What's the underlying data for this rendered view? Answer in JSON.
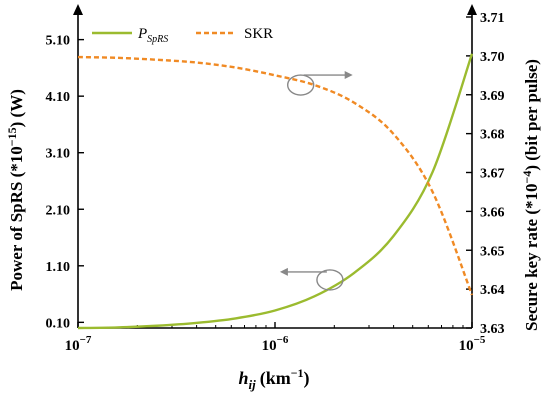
{
  "chart_data": {
    "type": "line",
    "x_axis": {
      "label_main": "h",
      "label_sub": "ij",
      "label_unit": "(km",
      "label_unit_sup": "−1",
      "label_unit_close": ")",
      "scale": "log",
      "range": [
        1e-07,
        1e-05
      ],
      "ticks": [
        {
          "value": 1e-07,
          "base": "10",
          "exp": "−7"
        },
        {
          "value": 1e-06,
          "base": "10",
          "exp": "−6"
        },
        {
          "value": 1e-05,
          "base": "10",
          "exp": "−5"
        }
      ]
    },
    "y_left": {
      "label_pre": "Power of SpRS (*10",
      "label_sup": "−15",
      "label_post": ") (W)",
      "range": [
        0.0,
        5.5
      ],
      "ticks": [
        "0.10",
        "1.10",
        "2.10",
        "3.10",
        "4.10",
        "5.10"
      ]
    },
    "y_right": {
      "label_pre": "Secure key rate (*10",
      "label_sup": "−4",
      "label_post": ") (bit per pulse)",
      "range": [
        3.63,
        3.71
      ],
      "ticks": [
        "3.63",
        "3.64",
        "3.65",
        "3.66",
        "3.67",
        "3.68",
        "3.69",
        "3.70",
        "3.71"
      ]
    },
    "series": [
      {
        "name_main": "P",
        "name_sub": "SpRS",
        "axis": "left",
        "style": "solid",
        "color": "#9bbb2f",
        "x": [
          1e-07,
          1.585e-07,
          2.512e-07,
          3.981e-07,
          6.31e-07,
          1e-06,
          1.585e-06,
          2.512e-06,
          3.981e-06,
          6.31e-06,
          1e-05
        ],
        "y": [
          0.0,
          0.01,
          0.04,
          0.09,
          0.17,
          0.31,
          0.56,
          0.97,
          1.62,
          2.76,
          4.85
        ]
      },
      {
        "name": "SKR",
        "axis": "right",
        "style": "dashed",
        "color": "#f08a24",
        "x": [
          1e-07,
          1.585e-07,
          2.512e-07,
          3.981e-07,
          6.31e-07,
          1e-06,
          1.585e-06,
          2.512e-06,
          3.981e-06,
          6.31e-06,
          1e-05
        ],
        "y": [
          3.6997,
          3.6995,
          3.699,
          3.6983,
          3.697,
          3.695,
          3.6925,
          3.688,
          3.68,
          3.665,
          3.6385
        ]
      }
    ],
    "legend": {
      "position": "top-left"
    },
    "annotations": [
      {
        "type": "ellipse-arrow",
        "series": "SKR",
        "direction": "right",
        "at": [
          1.35e-06,
          3.6925
        ]
      },
      {
        "type": "ellipse-arrow",
        "series": "P_SpRS",
        "direction": "left",
        "at": [
          1.9e-06,
          0.85
        ]
      }
    ],
    "grid": false
  }
}
